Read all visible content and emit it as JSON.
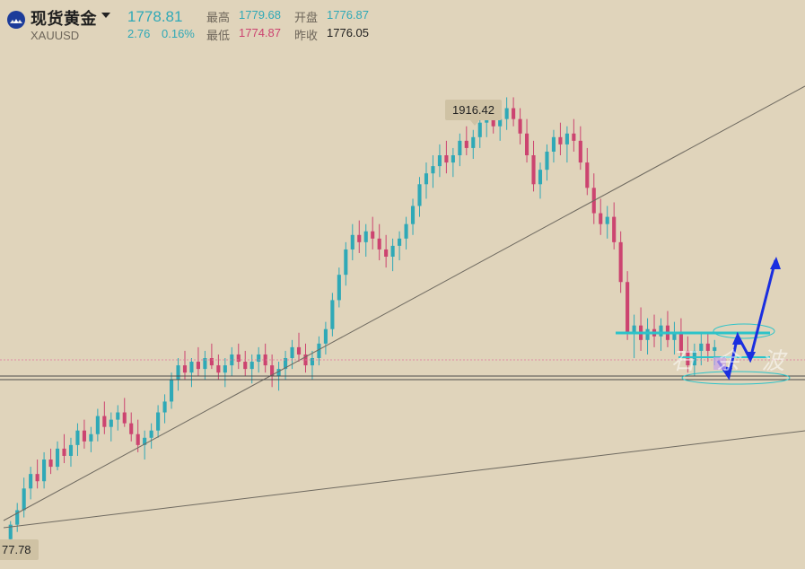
{
  "header": {
    "name": "现货黄金",
    "code": "XAUUSD",
    "last": "1778.81",
    "change": "2.76",
    "change_pct": "0.16%",
    "high_label": "最高",
    "high": "1779.68",
    "low_label": "最低",
    "low": "1774.87",
    "open_label": "开盘",
    "open": "1776.87",
    "prevclose_label": "昨收",
    "prevclose": "1776.05"
  },
  "colors": {
    "up": "#2fa9b7",
    "down": "#cc4470",
    "neutral": "#1e1e1e",
    "background": "#e0d4bb",
    "arrow": "#1a2ee0"
  },
  "annotations": {
    "high_marker": "1916.42",
    "low_marker": "77.78",
    "watermark": "石 余 波"
  },
  "chart_data": {
    "type": "candlestick",
    "title": "",
    "xlabel": "",
    "ylabel": "",
    "ylim": [
      1660,
      1940
    ],
    "grid": false,
    "marked_high": 1916.42,
    "current_price": 1778.81,
    "series": [
      {
        "ohlc": [
          [
            1672,
            1682,
            1668,
            1680
          ],
          [
            1680,
            1692,
            1676,
            1688
          ],
          [
            1688,
            1706,
            1684,
            1700
          ],
          [
            1700,
            1712,
            1694,
            1708
          ],
          [
            1708,
            1716,
            1700,
            1704
          ],
          [
            1704,
            1720,
            1700,
            1716
          ],
          [
            1716,
            1722,
            1708,
            1712
          ],
          [
            1712,
            1726,
            1710,
            1722
          ],
          [
            1722,
            1730,
            1714,
            1718
          ],
          [
            1718,
            1728,
            1712,
            1724
          ],
          [
            1724,
            1736,
            1718,
            1732
          ],
          [
            1732,
            1738,
            1722,
            1726
          ],
          [
            1726,
            1734,
            1720,
            1730
          ],
          [
            1730,
            1744,
            1726,
            1740
          ],
          [
            1740,
            1748,
            1730,
            1734
          ],
          [
            1734,
            1742,
            1726,
            1738
          ],
          [
            1738,
            1746,
            1732,
            1742
          ],
          [
            1742,
            1750,
            1734,
            1736
          ],
          [
            1736,
            1742,
            1726,
            1730
          ],
          [
            1730,
            1738,
            1720,
            1724
          ],
          [
            1724,
            1732,
            1716,
            1728
          ],
          [
            1728,
            1736,
            1722,
            1732
          ],
          [
            1732,
            1746,
            1728,
            1742
          ],
          [
            1742,
            1752,
            1736,
            1748
          ],
          [
            1748,
            1764,
            1744,
            1760
          ],
          [
            1760,
            1772,
            1754,
            1768
          ],
          [
            1768,
            1776,
            1760,
            1764
          ],
          [
            1764,
            1772,
            1756,
            1770
          ],
          [
            1770,
            1778,
            1762,
            1766
          ],
          [
            1766,
            1776,
            1760,
            1772
          ],
          [
            1772,
            1780,
            1766,
            1768
          ],
          [
            1768,
            1774,
            1760,
            1764
          ],
          [
            1764,
            1772,
            1756,
            1768
          ],
          [
            1768,
            1778,
            1762,
            1774
          ],
          [
            1774,
            1780,
            1766,
            1770
          ],
          [
            1770,
            1776,
            1762,
            1766
          ],
          [
            1766,
            1774,
            1758,
            1770
          ],
          [
            1770,
            1778,
            1764,
            1774
          ],
          [
            1774,
            1780,
            1764,
            1768
          ],
          [
            1768,
            1774,
            1756,
            1762
          ],
          [
            1762,
            1770,
            1754,
            1766
          ],
          [
            1766,
            1776,
            1760,
            1772
          ],
          [
            1772,
            1782,
            1766,
            1778
          ],
          [
            1778,
            1786,
            1770,
            1774
          ],
          [
            1774,
            1780,
            1764,
            1768
          ],
          [
            1768,
            1776,
            1760,
            1772
          ],
          [
            1772,
            1784,
            1768,
            1780
          ],
          [
            1780,
            1792,
            1774,
            1788
          ],
          [
            1788,
            1808,
            1784,
            1804
          ],
          [
            1804,
            1822,
            1800,
            1818
          ],
          [
            1818,
            1836,
            1812,
            1832
          ],
          [
            1832,
            1846,
            1826,
            1840
          ],
          [
            1840,
            1848,
            1830,
            1836
          ],
          [
            1836,
            1846,
            1828,
            1842
          ],
          [
            1842,
            1850,
            1832,
            1838
          ],
          [
            1838,
            1846,
            1826,
            1832
          ],
          [
            1832,
            1840,
            1822,
            1828
          ],
          [
            1828,
            1838,
            1820,
            1834
          ],
          [
            1834,
            1842,
            1826,
            1838
          ],
          [
            1838,
            1850,
            1832,
            1846
          ],
          [
            1846,
            1860,
            1840,
            1856
          ],
          [
            1856,
            1872,
            1850,
            1868
          ],
          [
            1868,
            1880,
            1860,
            1874
          ],
          [
            1874,
            1884,
            1866,
            1878
          ],
          [
            1878,
            1890,
            1872,
            1884
          ],
          [
            1884,
            1892,
            1874,
            1880
          ],
          [
            1880,
            1888,
            1872,
            1884
          ],
          [
            1884,
            1896,
            1878,
            1892
          ],
          [
            1892,
            1900,
            1884,
            1888
          ],
          [
            1888,
            1898,
            1882,
            1894
          ],
          [
            1894,
            1906,
            1888,
            1902
          ],
          [
            1902,
            1912,
            1894,
            1906
          ],
          [
            1906,
            1914,
            1896,
            1900
          ],
          [
            1900,
            1908,
            1892,
            1904
          ],
          [
            1904,
            1916,
            1898,
            1910
          ],
          [
            1910,
            1916,
            1900,
            1904
          ],
          [
            1904,
            1910,
            1890,
            1896
          ],
          [
            1896,
            1904,
            1880,
            1884
          ],
          [
            1884,
            1892,
            1864,
            1868
          ],
          [
            1868,
            1880,
            1860,
            1876
          ],
          [
            1876,
            1890,
            1870,
            1886
          ],
          [
            1886,
            1898,
            1880,
            1894
          ],
          [
            1894,
            1902,
            1884,
            1890
          ],
          [
            1890,
            1900,
            1880,
            1896
          ],
          [
            1896,
            1904,
            1886,
            1892
          ],
          [
            1892,
            1900,
            1876,
            1880
          ],
          [
            1880,
            1888,
            1862,
            1866
          ],
          [
            1866,
            1874,
            1846,
            1852
          ],
          [
            1852,
            1860,
            1840,
            1846
          ],
          [
            1846,
            1856,
            1838,
            1850
          ],
          [
            1850,
            1858,
            1832,
            1836
          ],
          [
            1836,
            1842,
            1808,
            1814
          ],
          [
            1814,
            1820,
            1782,
            1786
          ],
          [
            1786,
            1796,
            1772,
            1790
          ],
          [
            1790,
            1800,
            1776,
            1782
          ],
          [
            1782,
            1794,
            1774,
            1788
          ],
          [
            1788,
            1796,
            1778,
            1784
          ],
          [
            1784,
            1794,
            1776,
            1790
          ],
          [
            1790,
            1798,
            1778,
            1782
          ],
          [
            1782,
            1792,
            1774,
            1786
          ],
          [
            1786,
            1794,
            1772,
            1776
          ],
          [
            1776,
            1784,
            1764,
            1768
          ],
          [
            1768,
            1780,
            1762,
            1776
          ],
          [
            1776,
            1786,
            1768,
            1780
          ],
          [
            1780,
            1786,
            1770,
            1776
          ],
          [
            1776,
            1782,
            1768,
            1778
          ]
        ]
      }
    ]
  }
}
